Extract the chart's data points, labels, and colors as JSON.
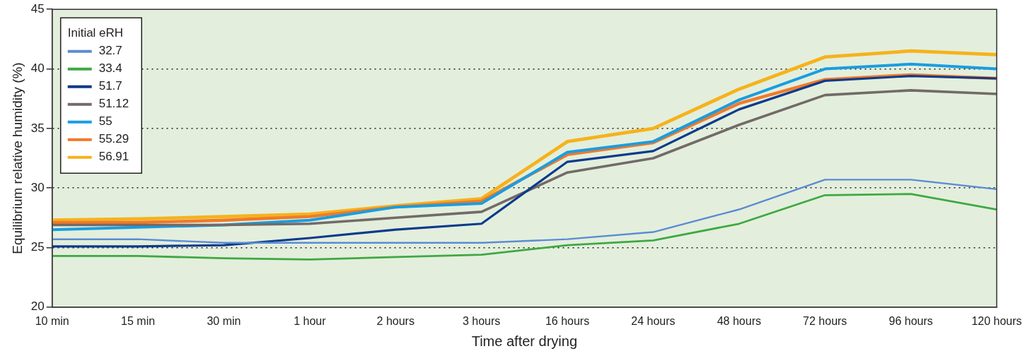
{
  "chart_data": {
    "type": "line",
    "xlabel": "Time after drying",
    "ylabel": "Equilibrium relative humidity (%)",
    "legend_title": "Initial eRH",
    "legend": "top left",
    "grid": "y",
    "line_style": "solid",
    "marker": "none",
    "categories": [
      "10 min",
      "15 min",
      "30 min",
      "1 hour",
      "2 hours",
      "3 hours",
      "16 hours",
      "24 hours",
      "48 hours",
      "72 hours",
      "96 hours",
      "120 hours"
    ],
    "ylim": [
      20,
      45
    ],
    "yticks": [
      20,
      25,
      30,
      35,
      40,
      45
    ],
    "series": [
      {
        "name": "32.7",
        "color": "#5b8bd4",
        "values": [
          25.7,
          25.7,
          25.4,
          25.4,
          25.4,
          25.4,
          25.7,
          26.3,
          28.2,
          30.7,
          30.7,
          29.9
        ]
      },
      {
        "name": "33.4",
        "color": "#3fa844",
        "values": [
          24.3,
          24.3,
          24.1,
          24.0,
          24.2,
          24.4,
          25.2,
          25.6,
          27.0,
          29.4,
          29.5,
          28.2
        ]
      },
      {
        "name": "51.7",
        "color": "#0d3a8c",
        "values": [
          25.1,
          25.1,
          25.2,
          25.8,
          26.5,
          27.0,
          32.2,
          33.1,
          36.6,
          39.0,
          39.4,
          39.2
        ]
      },
      {
        "name": "51.12",
        "color": "#736a69",
        "values": [
          26.9,
          26.9,
          26.9,
          27.0,
          27.5,
          28.0,
          31.3,
          32.5,
          35.3,
          37.8,
          38.2,
          37.9
        ]
      },
      {
        "name": "55",
        "color": "#1a9de0",
        "values": [
          26.5,
          26.7,
          26.9,
          27.3,
          28.4,
          28.7,
          33.0,
          33.9,
          37.4,
          40.0,
          40.4,
          40.0
        ]
      },
      {
        "name": "55.29",
        "color": "#f07a2a",
        "values": [
          27.1,
          27.1,
          27.3,
          27.6,
          28.4,
          28.9,
          32.8,
          33.8,
          37.1,
          39.1,
          39.5,
          39.2
        ]
      },
      {
        "name": "56.91",
        "color": "#f6b21c",
        "values": [
          27.3,
          27.4,
          27.6,
          27.8,
          28.5,
          29.1,
          33.9,
          35.0,
          38.3,
          41.0,
          41.5,
          41.2
        ]
      }
    ]
  }
}
